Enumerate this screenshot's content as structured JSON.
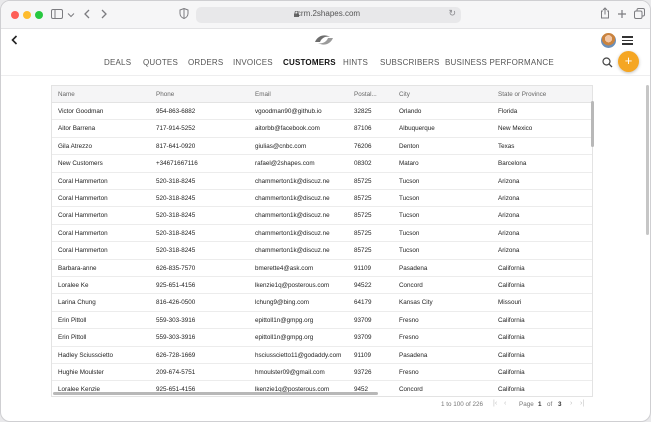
{
  "browser": {
    "url": "crm.2shapes.com"
  },
  "nav": {
    "items": [
      {
        "label": "DEALS",
        "active": false
      },
      {
        "label": "QUOTES",
        "active": false
      },
      {
        "label": "ORDERS",
        "active": false
      },
      {
        "label": "INVOICES",
        "active": false
      },
      {
        "label": "CUSTOMERS",
        "active": true
      },
      {
        "label": "HINTS",
        "active": false
      },
      {
        "label": "SUBSCRIBERS",
        "active": false
      },
      {
        "label": "BUSINESS PERFORMANCE",
        "active": false
      }
    ],
    "add_label": "+"
  },
  "table": {
    "columns": [
      "Name",
      "Phone",
      "Email",
      "Postal...",
      "City",
      "State or Province"
    ],
    "rows": [
      [
        "Victor Goodman",
        "954-863-6882",
        "vgoodman90@github.io",
        "32825",
        "Orlando",
        "Florida"
      ],
      [
        "Aitor Barrena",
        "717-914-5252",
        "aitorbb@facebook.com",
        "87106",
        "Albuquerque",
        "New Mexico"
      ],
      [
        "Gila Atrezzo",
        "817-641-0920",
        "giulias@cnbc.com",
        "76206",
        "Denton",
        "Texas"
      ],
      [
        "New Customers",
        "+34671667116",
        "rafael@2shapes.com",
        "08302",
        "Mataro",
        "Barcelona"
      ],
      [
        "Coral Hammerton",
        "520-318-8245",
        "chammerton1k@discuz.ne",
        "85725",
        "Tucson",
        "Arizona"
      ],
      [
        "Coral Hammerton",
        "520-318-8245",
        "chammerton1k@discuz.ne",
        "85725",
        "Tucson",
        "Arizona"
      ],
      [
        "Coral Hammerton",
        "520-318-8245",
        "chammerton1k@discuz.ne",
        "85725",
        "Tucson",
        "Arizona"
      ],
      [
        "Coral Hammerton",
        "520-318-8245",
        "chammerton1k@discuz.ne",
        "85725",
        "Tucson",
        "Arizona"
      ],
      [
        "Coral Hammerton",
        "520-318-8245",
        "chammerton1k@discuz.ne",
        "85725",
        "Tucson",
        "Arizona"
      ],
      [
        "Barbara-anne",
        "626-835-7570",
        "bmerette4@ask.com",
        "91109",
        "Pasadena",
        "California"
      ],
      [
        "Loralee Ke",
        "925-651-4156",
        "lkenzie1q@posterous.com",
        "94522",
        "Concord",
        "California"
      ],
      [
        "Larina Chung",
        "816-426-0500",
        "lchung9@bing.com",
        "64179",
        "Kansas City",
        "Missouri"
      ],
      [
        "Erin Pittoll",
        "559-303-3916",
        "epittoll1n@gmpg.org",
        "93709",
        "Fresno",
        "California"
      ],
      [
        "Erin Pittoll",
        "559-303-3916",
        "epittoll1n@gmpg.org",
        "93709",
        "Fresno",
        "California"
      ],
      [
        "Hadley Sciusscietto",
        "626-728-1669",
        "hsciusscietto11@godaddy.com",
        "91109",
        "Pasadena",
        "California"
      ],
      [
        "Hughie Moulster",
        "209-674-5751",
        "hmoulster09@gmail.com",
        "93726",
        "Fresno",
        "California"
      ],
      [
        "Loralee Kenzie",
        "925-651-4156",
        "lkenzie1q@posterous.com",
        "9452",
        "Concord",
        "California"
      ]
    ]
  },
  "pager": {
    "range": "1 to 100 of 226",
    "page_label": "Page",
    "current_page": "1",
    "of_label": "of",
    "total_pages": "3"
  }
}
